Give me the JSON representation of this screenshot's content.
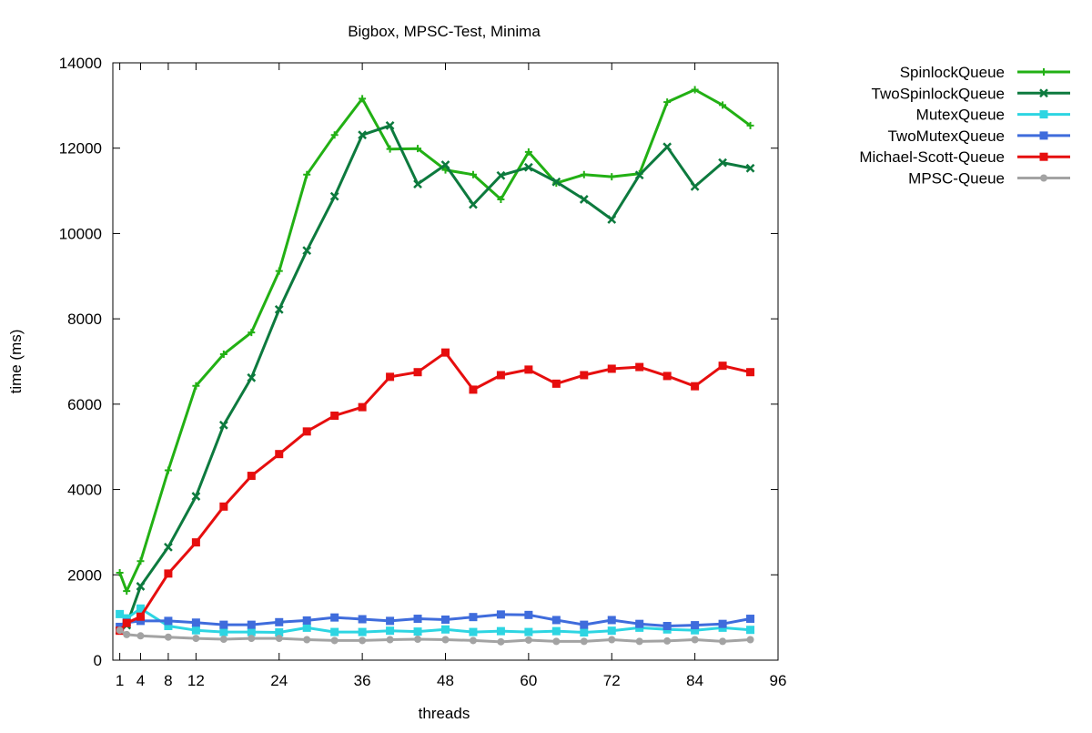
{
  "chart_data": {
    "type": "line",
    "title": "Bigbox, MPSC-Test, Minima",
    "xlabel": "threads",
    "ylabel": "time (ms)",
    "xlim": [
      0,
      96
    ],
    "ylim": [
      0,
      14000
    ],
    "xticks": [
      1,
      4,
      8,
      12,
      24,
      36,
      48,
      60,
      72,
      84,
      96
    ],
    "yticks": [
      0,
      2000,
      4000,
      6000,
      8000,
      10000,
      12000,
      14000
    ],
    "grid": false,
    "legend_position": "outside top-right",
    "x": [
      1,
      2,
      4,
      8,
      12,
      16,
      20,
      24,
      28,
      32,
      36,
      40,
      44,
      48,
      52,
      56,
      60,
      64,
      68,
      72,
      76,
      80,
      84,
      88,
      92
    ],
    "series": [
      {
        "name": "SpinlockQueue",
        "color": "#22b014",
        "marker": "plus",
        "values": [
          2050,
          1620,
          2320,
          4450,
          6430,
          7170,
          7680,
          9120,
          11380,
          12310,
          13160,
          11980,
          11990,
          11490,
          11380,
          10800,
          11910,
          11180,
          11380,
          11330,
          11400,
          13080,
          13370,
          13010,
          12530
        ]
      },
      {
        "name": "TwoSpinlockQueue",
        "color": "#0d7a3e",
        "marker": "cross",
        "values": [
          700,
          820,
          1730,
          2650,
          3840,
          5510,
          6620,
          8220,
          9600,
          10870,
          12310,
          12530,
          11160,
          11610,
          10680,
          11360,
          11550,
          11210,
          10800,
          10330,
          11370,
          12030,
          11100,
          11660,
          11530
        ]
      },
      {
        "name": "MutexQueue",
        "color": "#2dd5e2",
        "marker": "square",
        "values": [
          1080,
          980,
          1210,
          800,
          700,
          660,
          660,
          650,
          760,
          660,
          660,
          690,
          670,
          720,
          660,
          680,
          660,
          680,
          650,
          690,
          760,
          720,
          700,
          760,
          710
        ]
      },
      {
        "name": "TwoMutexQueue",
        "color": "#3f6cdc",
        "marker": "square",
        "values": [
          780,
          880,
          920,
          920,
          880,
          830,
          830,
          890,
          930,
          1000,
          960,
          920,
          970,
          950,
          1010,
          1070,
          1060,
          940,
          830,
          940,
          850,
          800,
          820,
          850,
          970
        ]
      },
      {
        "name": "Michael-Scott-Queue",
        "color": "#e60e0e",
        "marker": "square",
        "values": [
          690,
          870,
          1020,
          2030,
          2760,
          3600,
          4320,
          4830,
          5360,
          5730,
          5930,
          6640,
          6750,
          7210,
          6340,
          6680,
          6810,
          6480,
          6680,
          6830,
          6870,
          6660,
          6420,
          6900,
          6750
        ]
      },
      {
        "name": "MPSC-Queue",
        "color": "#a3a3a3",
        "marker": "circle",
        "values": [
          700,
          600,
          570,
          540,
          510,
          490,
          510,
          510,
          480,
          460,
          460,
          480,
          490,
          480,
          460,
          430,
          470,
          440,
          440,
          480,
          440,
          450,
          480,
          440,
          480
        ]
      }
    ]
  }
}
